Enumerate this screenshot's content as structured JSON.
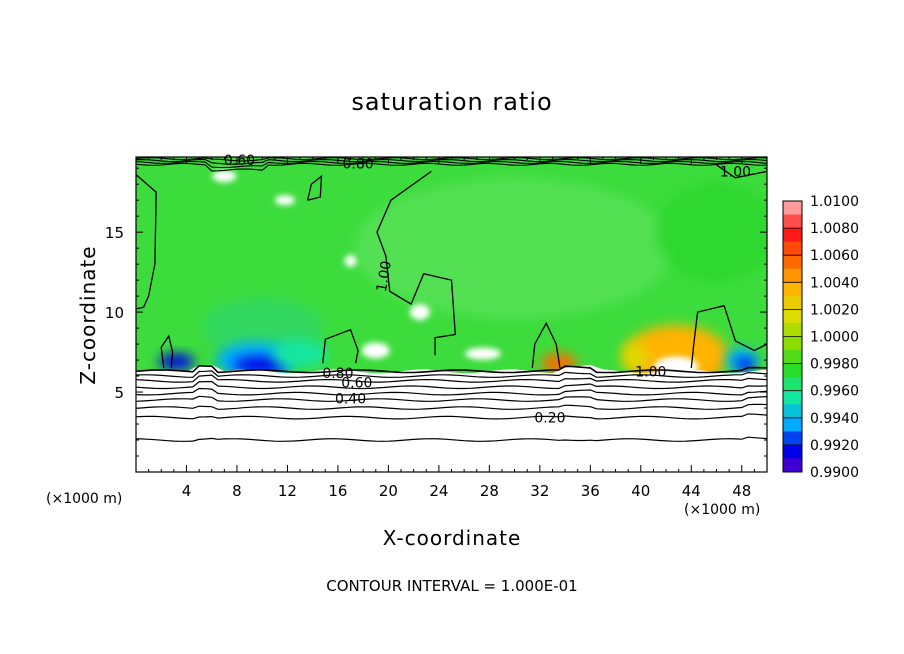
{
  "chart_data": {
    "type": "heatmap",
    "title": "saturation ratio",
    "xlabel": "X-coordinate",
    "ylabel": "Z-coordinate",
    "x_unit": "(×1000 m)",
    "contour_interval_text": "CONTOUR INTERVAL = 1.000E-01",
    "xlim": [
      0,
      50
    ],
    "ylim": [
      0,
      19.7
    ],
    "x_ticks": [
      4,
      8,
      12,
      16,
      20,
      24,
      28,
      32,
      36,
      40,
      44,
      48
    ],
    "y_ticks": [
      5,
      10,
      15
    ],
    "colorbar": {
      "min": 0.99,
      "max": 1.01,
      "labels": [
        "1.0100",
        "1.0080",
        "1.0060",
        "1.0040",
        "1.0020",
        "1.0000",
        "0.9980",
        "0.9960",
        "0.9940",
        "0.9920",
        "0.9900"
      ],
      "colors": [
        "#ff9a9a",
        "#ff1a1a",
        "#ff6a00",
        "#ffb400",
        "#dcdc00",
        "#8cdc00",
        "#28dc28",
        "#14e6a0",
        "#00aaff",
        "#0000e6",
        "#6a00c8"
      ]
    },
    "contour_labels": [
      {
        "text": "0.60",
        "x": 8.2,
        "y": 19.5
      },
      {
        "text": "0.80",
        "x": 17.6,
        "y": 19.3
      },
      {
        "text": "1.00",
        "x": 47.5,
        "y": 18.8
      },
      {
        "text": "1.00",
        "x": 20.0,
        "y": 12.5
      },
      {
        "text": "0.80",
        "x": 16.0,
        "y": 6.2
      },
      {
        "text": "0.60",
        "x": 17.5,
        "y": 5.6
      },
      {
        "text": "0.40",
        "x": 17.0,
        "y": 4.6
      },
      {
        "text": "0.20",
        "x": 32.8,
        "y": 3.4
      },
      {
        "text": "1.00",
        "x": 40.8,
        "y": 6.3
      }
    ],
    "horizontal_contours_z": [
      6.3,
      6.0,
      5.7,
      5.3,
      4.9,
      4.5,
      4.0,
      3.4,
      2.0
    ]
  }
}
